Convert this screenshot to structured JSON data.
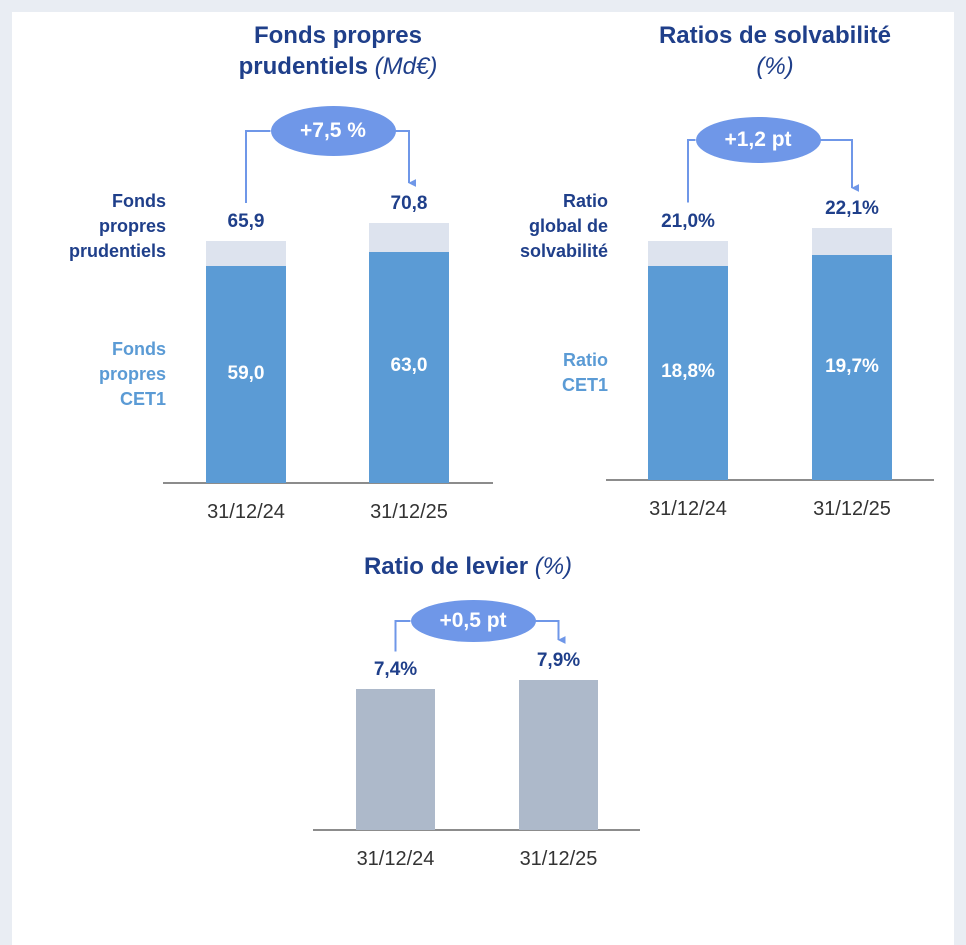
{
  "chart_data": [
    {
      "type": "bar",
      "title": "Fonds propres prudentiels",
      "title_unit": "(Md€)",
      "categories": [
        "31/12/24",
        "31/12/25"
      ],
      "series": [
        {
          "name": "Fonds propres prudentiels",
          "color": "#dde3ee",
          "values": [
            65.9,
            70.8
          ],
          "value_labels": [
            "65,9",
            "70,8"
          ]
        },
        {
          "name": "Fonds propres CET1",
          "color": "#5b9bd5",
          "values": [
            59.0,
            63.0
          ],
          "value_labels": [
            "59,0",
            "63,0"
          ]
        }
      ],
      "annotation": "+7,5 %"
    },
    {
      "type": "bar",
      "title": "Ratios de solvabilité",
      "title_unit": "(%)",
      "categories": [
        "31/12/24",
        "31/12/25"
      ],
      "series": [
        {
          "name": "Ratio global de solvabilité",
          "color": "#dde3ee",
          "values": [
            21.0,
            22.1
          ],
          "value_labels": [
            "21,0%",
            "22,1%"
          ]
        },
        {
          "name": "Ratio CET1",
          "color": "#5b9bd5",
          "values": [
            18.8,
            19.7
          ],
          "value_labels": [
            "18,8%",
            "19,7%"
          ]
        }
      ],
      "annotation": "+1,2 pt"
    },
    {
      "type": "bar",
      "title": "Ratio de levier",
      "title_unit": "(%)",
      "categories": [
        "31/12/24",
        "31/12/25"
      ],
      "series": [
        {
          "color": "#adb9ca",
          "values": [
            7.4,
            7.9
          ],
          "value_labels": [
            "7,4%",
            "7,9%"
          ]
        }
      ],
      "annotation": "+0,5 pt"
    }
  ]
}
